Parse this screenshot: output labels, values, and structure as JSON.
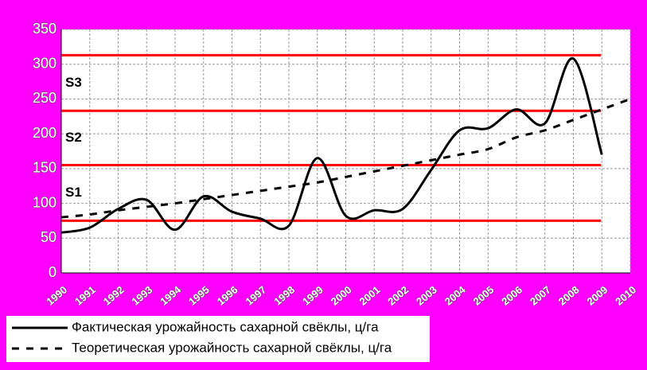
{
  "chart_data": {
    "type": "line",
    "x": [
      1990,
      1991,
      1992,
      1993,
      1994,
      1995,
      1996,
      1997,
      1998,
      1999,
      2000,
      2001,
      2002,
      2003,
      2004,
      2005,
      2006,
      2007,
      2008,
      2009,
      2010
    ],
    "series": [
      {
        "name": "Фактическая урожайность сахарной свёклы, ц/га",
        "color": "#000000",
        "style": "solid",
        "values": [
          58,
          65,
          92,
          105,
          62,
          110,
          88,
          78,
          68,
          165,
          82,
          90,
          92,
          148,
          205,
          208,
          235,
          215,
          308,
          170,
          null
        ]
      },
      {
        "name": "Теоретическая урожайность сахарной свёклы, ц/га",
        "color": "#000000",
        "style": "dashed",
        "values": [
          80,
          84,
          90,
          95,
          100,
          106,
          112,
          118,
          124,
          130,
          138,
          146,
          154,
          162,
          170,
          178,
          195,
          205,
          220,
          235,
          250
        ]
      }
    ],
    "hlines": [
      75,
      155,
      233,
      313
    ],
    "hline_color": "#ff0000",
    "annotations": [
      "S1",
      "S2",
      "S3"
    ],
    "xlim": [
      1990,
      2010
    ],
    "xticks": [
      1990,
      1991,
      1992,
      1993,
      1994,
      1995,
      1996,
      1997,
      1998,
      1999,
      2000,
      2001,
      2002,
      2003,
      2004,
      2005,
      2006,
      2007,
      2008,
      2009,
      2010
    ],
    "ylim": [
      0,
      350
    ],
    "yticks": [
      0,
      50,
      100,
      150,
      200,
      250,
      300,
      350
    ],
    "grid": true
  }
}
